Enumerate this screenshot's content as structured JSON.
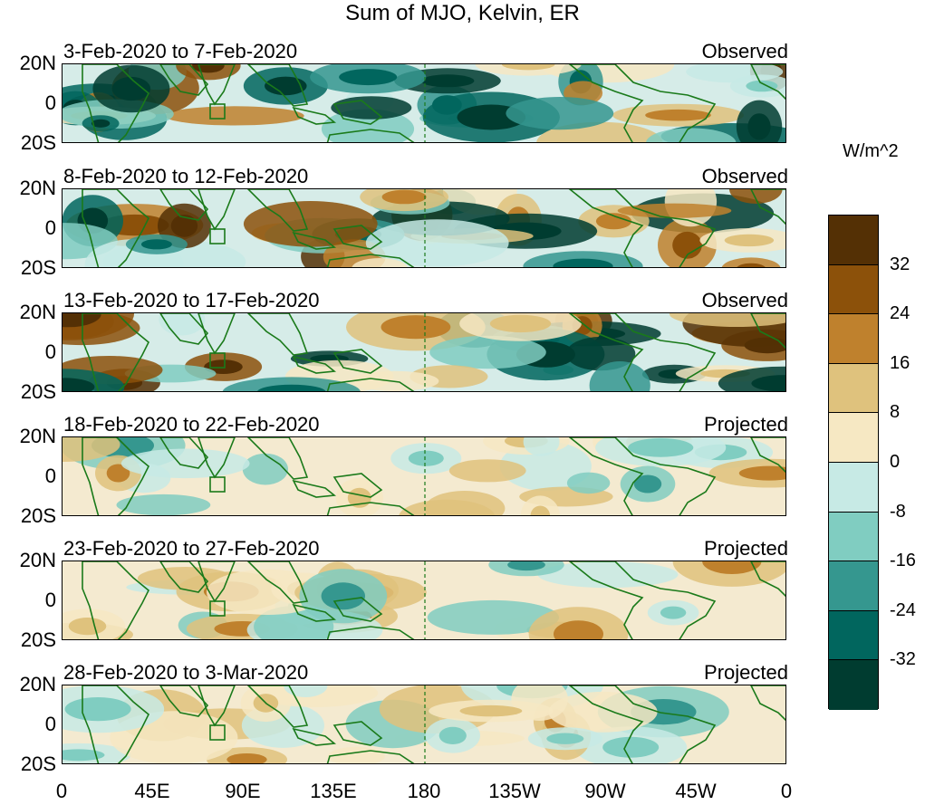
{
  "title": "Sum of MJO, Kelvin, ER",
  "units": "W/m^2",
  "panels": [
    {
      "dates": "3-Feb-2020 to 7-Feb-2020",
      "status": "Observed"
    },
    {
      "dates": "8-Feb-2020 to 12-Feb-2020",
      "status": "Observed"
    },
    {
      "dates": "13-Feb-2020 to 17-Feb-2020",
      "status": "Observed"
    },
    {
      "dates": "18-Feb-2020 to 22-Feb-2020",
      "status": "Projected"
    },
    {
      "dates": "23-Feb-2020 to 27-Feb-2020",
      "status": "Projected"
    },
    {
      "dates": "28-Feb-2020 to 3-Mar-2020",
      "status": "Projected"
    }
  ],
  "lat_labels": [
    "20N",
    "0",
    "20S"
  ],
  "lon_labels": [
    "0",
    "45E",
    "90E",
    "135E",
    "180",
    "135W",
    "90W",
    "45W",
    "0"
  ],
  "colorbar": {
    "labels": [
      "32",
      "24",
      "16",
      "8",
      "0",
      "-8",
      "-16",
      "-24",
      "-32"
    ],
    "colors": [
      "#543005",
      "#8c510a",
      "#bf812d",
      "#dfc27d",
      "#f6e8c3",
      "#c7eae5",
      "#80cdc1",
      "#35978f",
      "#01665e",
      "#003c30"
    ]
  }
}
